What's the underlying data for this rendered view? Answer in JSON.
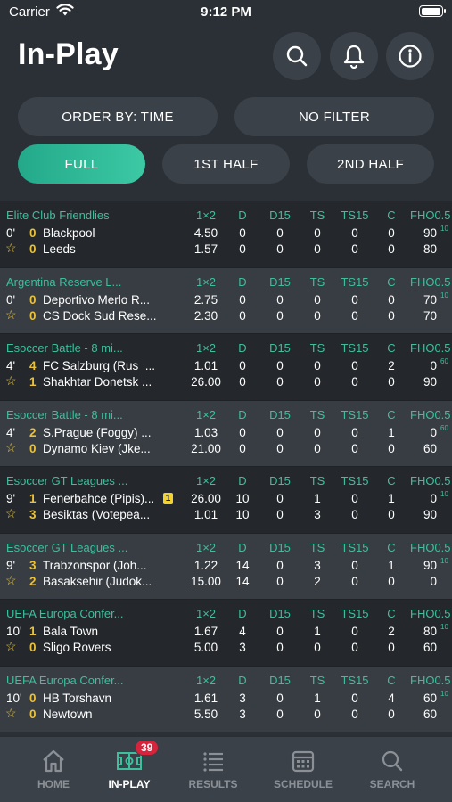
{
  "status": {
    "carrier": "Carrier",
    "time": "9:12 PM"
  },
  "header": {
    "title": "In-Play"
  },
  "filters": {
    "order_by": "ORDER BY: TIME",
    "no_filter": "NO FILTER",
    "full": "FULL",
    "first_half": "1ST HALF",
    "second_half": "2ND HALF"
  },
  "columns": [
    "1×2",
    "D",
    "D15",
    "TS",
    "TS15",
    "C",
    "FHO0.5"
  ],
  "matches": [
    {
      "league": "Elite Club Friendlies",
      "minute": "0'",
      "home": {
        "score": "0",
        "team": "Blackpool",
        "odds": "4.50",
        "d": "0",
        "d15": "0",
        "ts": "0",
        "ts15": "0",
        "c": "0",
        "fho": "90",
        "extra": "10"
      },
      "away": {
        "score": "0",
        "team": "Leeds",
        "odds": "1.57",
        "d": "0",
        "d15": "0",
        "ts": "0",
        "ts15": "0",
        "c": "0",
        "fho": "80"
      }
    },
    {
      "league": "Argentina Reserve L...",
      "minute": "0'",
      "home": {
        "score": "0",
        "team": "Deportivo Merlo R...",
        "odds": "2.75",
        "d": "0",
        "d15": "0",
        "ts": "0",
        "ts15": "0",
        "c": "0",
        "fho": "70",
        "extra": "10"
      },
      "away": {
        "score": "0",
        "team": "CS Dock Sud Rese...",
        "odds": "2.30",
        "d": "0",
        "d15": "0",
        "ts": "0",
        "ts15": "0",
        "c": "0",
        "fho": "70"
      }
    },
    {
      "league": "Esoccer Battle - 8 mi...",
      "minute": "4'",
      "home": {
        "score": "4",
        "team": "FC Salzburg (Rus_...",
        "odds": "1.01",
        "d": "0",
        "d15": "0",
        "ts": "0",
        "ts15": "0",
        "c": "2",
        "fho": "0",
        "extra": "60"
      },
      "away": {
        "score": "1",
        "team": "Shakhtar Donetsk ...",
        "odds": "26.00",
        "d": "0",
        "d15": "0",
        "ts": "0",
        "ts15": "0",
        "c": "0",
        "fho": "90"
      }
    },
    {
      "league": "Esoccer Battle - 8 mi...",
      "minute": "4'",
      "home": {
        "score": "2",
        "team": "S.Prague (Foggy) ...",
        "odds": "1.03",
        "d": "0",
        "d15": "0",
        "ts": "0",
        "ts15": "0",
        "c": "1",
        "fho": "0",
        "extra": "60"
      },
      "away": {
        "score": "0",
        "team": "Dynamo Kiev (Jke...",
        "odds": "21.00",
        "d": "0",
        "d15": "0",
        "ts": "0",
        "ts15": "0",
        "c": "0",
        "fho": "60"
      }
    },
    {
      "league": "Esoccer GT Leagues ...",
      "minute": "9'",
      "home": {
        "score": "1",
        "team": "Fenerbahce (Pipis)...",
        "card": "1",
        "odds": "26.00",
        "d": "10",
        "d15": "0",
        "ts": "1",
        "ts15": "0",
        "c": "1",
        "fho": "0",
        "extra": "10"
      },
      "away": {
        "score": "3",
        "team": "Besiktas (Votepea...",
        "odds": "1.01",
        "d": "10",
        "d15": "0",
        "ts": "3",
        "ts15": "0",
        "c": "0",
        "fho": "90"
      }
    },
    {
      "league": "Esoccer GT Leagues ...",
      "minute": "9'",
      "home": {
        "score": "3",
        "team": "Trabzonspor (Joh...",
        "odds": "1.22",
        "d": "14",
        "d15": "0",
        "ts": "3",
        "ts15": "0",
        "c": "1",
        "fho": "90",
        "extra": "10"
      },
      "away": {
        "score": "2",
        "team": "Basaksehir (Judok...",
        "odds": "15.00",
        "d": "14",
        "d15": "0",
        "ts": "2",
        "ts15": "0",
        "c": "0",
        "fho": "0"
      }
    },
    {
      "league": "UEFA Europa Confer...",
      "minute": "10'",
      "home": {
        "score": "1",
        "team": "Bala Town",
        "odds": "1.67",
        "d": "4",
        "d15": "0",
        "ts": "1",
        "ts15": "0",
        "c": "2",
        "fho": "80",
        "extra": "10"
      },
      "away": {
        "score": "0",
        "team": "Sligo Rovers",
        "odds": "5.00",
        "d": "3",
        "d15": "0",
        "ts": "0",
        "ts15": "0",
        "c": "0",
        "fho": "60"
      }
    },
    {
      "league": "UEFA Europa Confer...",
      "minute": "10'",
      "home": {
        "score": "0",
        "team": "HB Torshavn",
        "odds": "1.61",
        "d": "3",
        "d15": "0",
        "ts": "1",
        "ts15": "0",
        "c": "4",
        "fho": "60",
        "extra": "10"
      },
      "away": {
        "score": "0",
        "team": "Newtown",
        "odds": "5.50",
        "d": "3",
        "d15": "0",
        "ts": "0",
        "ts15": "0",
        "c": "0",
        "fho": "60"
      }
    }
  ],
  "tabs": {
    "home": "HOME",
    "inplay": "IN-PLAY",
    "inplay_badge": "39",
    "results": "RESULTS",
    "schedule": "SCHEDULE",
    "search": "SEARCH"
  }
}
